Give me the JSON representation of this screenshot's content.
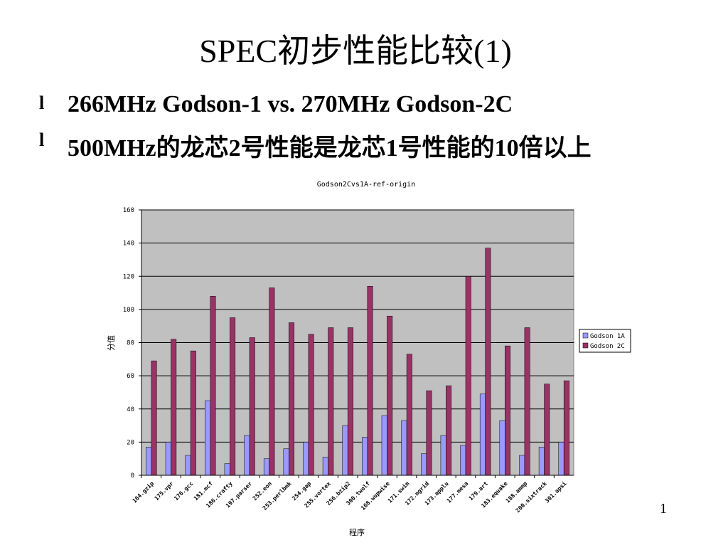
{
  "slide": {
    "title": "SPEC初步性能比较(1)",
    "bullets": [
      {
        "mark": "l",
        "text": "266MHz Godson-1 vs. 270MHz Godson-2C"
      },
      {
        "mark": "l",
        "text": "500MHz的龙芯2号性能是龙芯1号性能的10倍以上"
      }
    ],
    "page_number": "1"
  },
  "colors": {
    "plot_bg": "#c0c0c0",
    "series1": "#9999ff",
    "series2": "#993366",
    "gridline": "#000000"
  },
  "chart_data": {
    "type": "bar",
    "title": "Godson2Cvs1A-ref-origin",
    "xlabel": "程序",
    "ylabel": "分值",
    "ylim": [
      0,
      160
    ],
    "yticks": [
      0,
      20,
      40,
      60,
      80,
      100,
      120,
      140,
      160
    ],
    "grid": true,
    "legend_position": "right",
    "categories": [
      "164.gzip",
      "175.vpr",
      "176.gcc",
      "181.mcf",
      "186.crafty",
      "197.parser",
      "252.eon",
      "253.perlbmk",
      "254.gap",
      "255.vortex",
      "256.bzip2",
      "300.twolf",
      "168.wupwise",
      "171.swim",
      "172.mgrid",
      "173.applu",
      "177.mesa",
      "179.art",
      "183.equake",
      "188.ammp",
      "200.sixtrack",
      "301.apsi"
    ],
    "series": [
      {
        "name": "Godson 1A",
        "values": [
          17,
          20,
          12,
          45,
          7,
          24,
          10,
          16,
          20,
          11,
          30,
          23,
          36,
          33,
          13,
          24,
          18,
          49,
          33,
          12,
          17,
          20
        ]
      },
      {
        "name": "Godson 2C",
        "values": [
          69,
          82,
          75,
          108,
          95,
          83,
          113,
          92,
          85,
          89,
          89,
          114,
          96,
          73,
          51,
          54,
          120,
          137,
          78,
          89,
          55,
          57
        ]
      }
    ]
  }
}
